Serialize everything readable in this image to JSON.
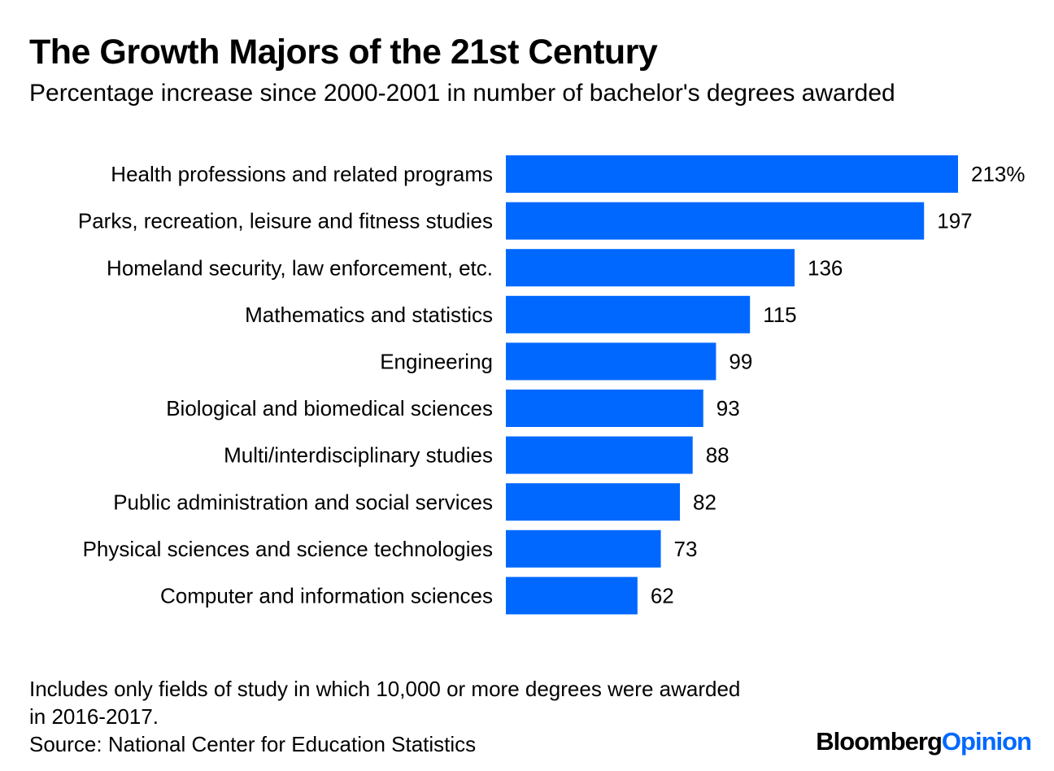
{
  "chart_data": {
    "type": "bar",
    "orientation": "horizontal",
    "title": "The Growth Majors of the 21st Century",
    "subtitle": "Percentage increase since 2000-2001 in number of bachelor's degrees awarded",
    "categories": [
      "Health professions and related programs",
      "Parks, recreation, leisure and fitness studies",
      "Homeland security, law enforcement, etc.",
      "Mathematics and statistics",
      "Engineering",
      "Biological and biomedical sciences",
      "Multi/interdisciplinary studies",
      "Public administration and social services",
      "Physical sciences and science technologies",
      "Computer and information sciences"
    ],
    "values": [
      213,
      197,
      136,
      115,
      99,
      93,
      88,
      82,
      73,
      62
    ],
    "value_labels": [
      "213%",
      "197",
      "136",
      "115",
      "99",
      "93",
      "88",
      "82",
      "73",
      "62"
    ],
    "xlim": [
      0,
      213
    ],
    "grid": false,
    "xlabel": "",
    "ylabel": "",
    "bar_color": "#0068FF"
  },
  "footer": {
    "note": "Includes only fields of study in which 10,000 or more degrees were awarded in 2016-2017.",
    "source": "Source: National Center for Education Statistics"
  },
  "branding": {
    "logo_primary": "Bloomberg",
    "logo_accent": "Opinion",
    "accent_color": "#0068FF"
  }
}
